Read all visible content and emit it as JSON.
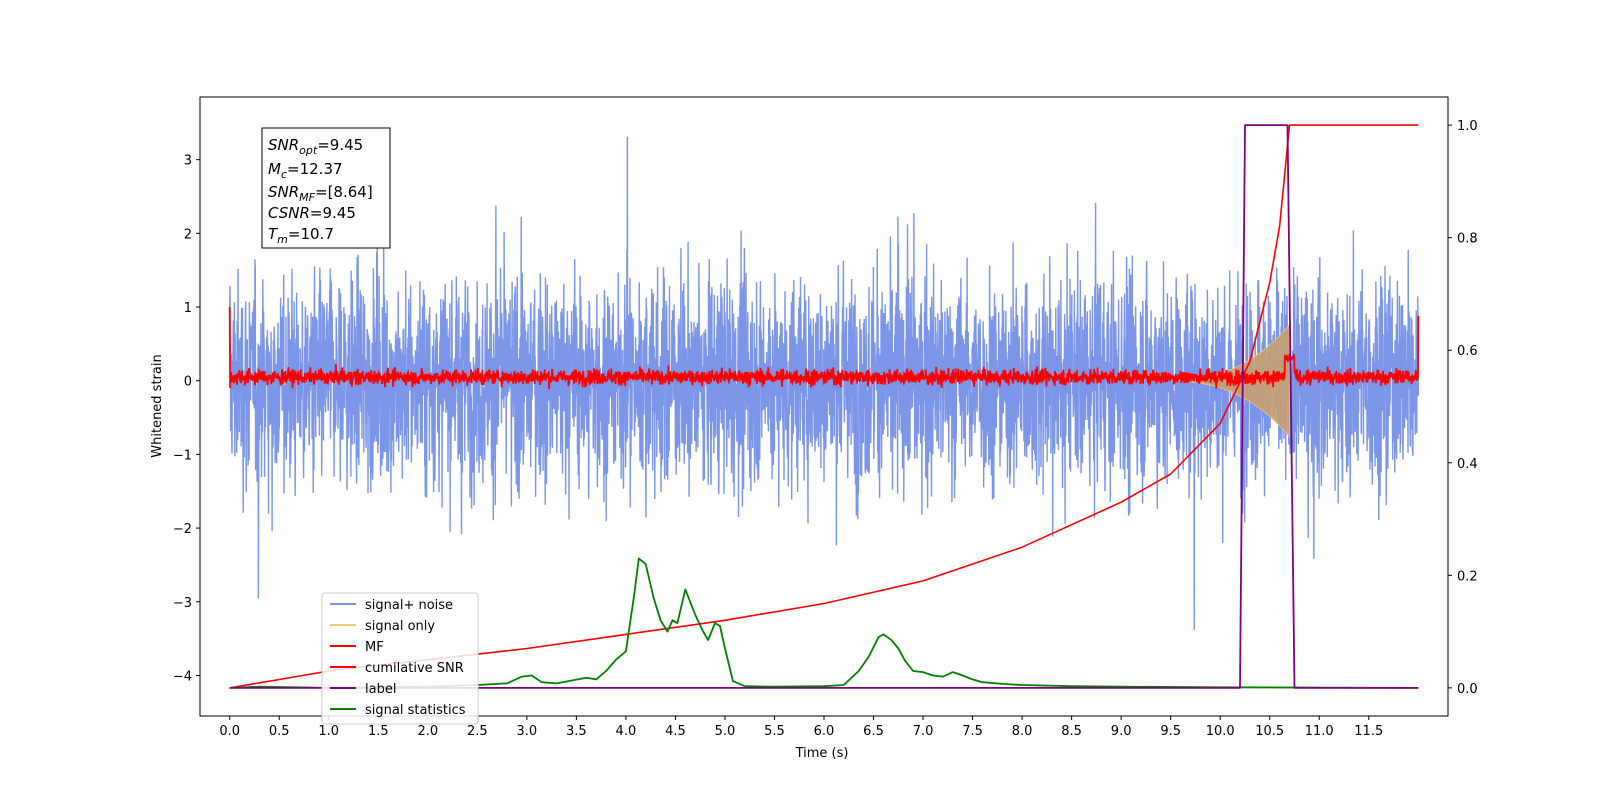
{
  "chart_data": {
    "type": "line",
    "xlabel": "Time (s)",
    "ylabel": "Whitened strain",
    "xlim": [
      -0.3,
      12.3
    ],
    "ylim": [
      -4.55,
      3.85
    ],
    "y2lim": [
      -0.05,
      1.05
    ],
    "x_ticks": [
      "0.0",
      "0.5",
      "1.0",
      "1.5",
      "2.0",
      "2.5",
      "3.0",
      "3.5",
      "4.0",
      "4.5",
      "5.0",
      "5.5",
      "6.0",
      "6.5",
      "7.0",
      "7.5",
      "8.0",
      "8.5",
      "9.0",
      "9.5",
      "10.0",
      "10.5",
      "11.0",
      "11.5"
    ],
    "y_ticks": [
      "3",
      "2",
      "1",
      "0",
      "−1",
      "−2",
      "−3",
      "−4"
    ],
    "y2_ticks": [
      "1.0",
      "0.8",
      "0.6",
      "0.4",
      "0.2",
      "0.0"
    ],
    "legend_position": "lower-left",
    "annotation": {
      "snr_opt": {
        "sym": "SNR",
        "sub": "opt",
        "val": "=9.45"
      },
      "mc": {
        "sym": "M",
        "sub": "c",
        "val": "=12.37"
      },
      "snr_mf": {
        "sym": "SNR",
        "sub": "MF",
        "val": "=[8.64]"
      },
      "csnr": {
        "sym": "CSNR",
        "sub": "",
        "val": "=9.45"
      },
      "tm": {
        "sym": "T",
        "sub": "m",
        "val": "=10.7"
      }
    },
    "series": [
      {
        "name": "signal+ noise",
        "color": "#7b96e8",
        "axis": "left",
        "description_values": {
          "amplitude_range": [
            -3.4,
            3.45
          ]
        }
      },
      {
        "name": "signal only",
        "color": "#f5c971",
        "axis": "left",
        "chirp": {
          "start": 9.5,
          "end": 10.7,
          "peak_amplitude": 0.7
        }
      },
      {
        "name": "MF",
        "color": "#ff0000",
        "axis": "left",
        "amplitude_range": [
          -0.15,
          0.4
        ]
      },
      {
        "name": "cumilative SNR",
        "color": "#ff0000",
        "axis": "right",
        "points": [
          [
            0.0,
            0.0
          ],
          [
            1.0,
            0.03
          ],
          [
            2.0,
            0.05
          ],
          [
            3.0,
            0.07
          ],
          [
            4.0,
            0.095
          ],
          [
            5.0,
            0.12
          ],
          [
            6.0,
            0.15
          ],
          [
            7.0,
            0.19
          ],
          [
            8.0,
            0.25
          ],
          [
            8.5,
            0.29
          ],
          [
            9.0,
            0.33
          ],
          [
            9.5,
            0.38
          ],
          [
            10.0,
            0.47
          ],
          [
            10.3,
            0.58
          ],
          [
            10.5,
            0.72
          ],
          [
            10.6,
            0.82
          ],
          [
            10.7,
            1.0
          ],
          [
            12.0,
            1.0
          ]
        ]
      },
      {
        "name": "label",
        "color": "#800080",
        "axis": "right",
        "points": [
          [
            0.0,
            0.0
          ],
          [
            10.2,
            0.0
          ],
          [
            10.25,
            1.0
          ],
          [
            10.68,
            1.0
          ],
          [
            10.75,
            0.0
          ],
          [
            12.0,
            0.0
          ]
        ]
      },
      {
        "name": "signal statistics",
        "color": "#008000",
        "axis": "right",
        "points": [
          [
            0.0,
            0.0
          ],
          [
            0.3,
            0.002
          ],
          [
            1.0,
            0.0
          ],
          [
            2.0,
            0.002
          ],
          [
            2.5,
            0.005
          ],
          [
            2.8,
            0.008
          ],
          [
            2.95,
            0.02
          ],
          [
            3.05,
            0.022
          ],
          [
            3.15,
            0.01
          ],
          [
            3.3,
            0.008
          ],
          [
            3.6,
            0.018
          ],
          [
            3.7,
            0.015
          ],
          [
            3.8,
            0.03
          ],
          [
            3.9,
            0.05
          ],
          [
            4.0,
            0.065
          ],
          [
            4.08,
            0.16
          ],
          [
            4.13,
            0.23
          ],
          [
            4.2,
            0.22
          ],
          [
            4.28,
            0.16
          ],
          [
            4.35,
            0.12
          ],
          [
            4.42,
            0.1
          ],
          [
            4.47,
            0.12
          ],
          [
            4.52,
            0.115
          ],
          [
            4.6,
            0.175
          ],
          [
            4.7,
            0.13
          ],
          [
            4.78,
            0.1
          ],
          [
            4.83,
            0.085
          ],
          [
            4.9,
            0.115
          ],
          [
            4.95,
            0.11
          ],
          [
            5.0,
            0.07
          ],
          [
            5.08,
            0.012
          ],
          [
            5.2,
            0.003
          ],
          [
            5.5,
            0.002
          ],
          [
            6.0,
            0.003
          ],
          [
            6.2,
            0.005
          ],
          [
            6.35,
            0.03
          ],
          [
            6.45,
            0.055
          ],
          [
            6.55,
            0.09
          ],
          [
            6.6,
            0.095
          ],
          [
            6.68,
            0.085
          ],
          [
            6.75,
            0.07
          ],
          [
            6.82,
            0.048
          ],
          [
            6.9,
            0.03
          ],
          [
            7.0,
            0.028
          ],
          [
            7.1,
            0.022
          ],
          [
            7.2,
            0.02
          ],
          [
            7.3,
            0.028
          ],
          [
            7.4,
            0.022
          ],
          [
            7.5,
            0.015
          ],
          [
            7.6,
            0.01
          ],
          [
            7.8,
            0.007
          ],
          [
            8.0,
            0.005
          ],
          [
            8.5,
            0.003
          ],
          [
            9.0,
            0.002
          ],
          [
            10.0,
            0.001
          ],
          [
            12.0,
            0.0
          ]
        ]
      }
    ]
  }
}
